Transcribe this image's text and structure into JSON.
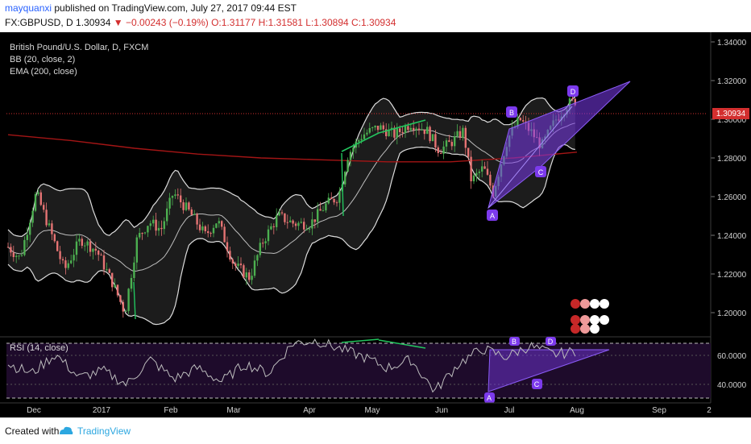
{
  "header": {
    "user": "mayquanxi",
    "published": "published on TradingView.com, July 27, 2017 09:44 EST",
    "symbol": "FX:GBPUSD, D",
    "last": "1.30934",
    "change": "−0.00243 (−0.19%)",
    "ohlc": "O:1.31177 H:1.31581 L:1.30894 C:1.30934"
  },
  "legend": {
    "line1": "British Pound/U.S. Dollar, D, FXCM",
    "line2": "BB (20, close, 2)",
    "line3": "EMA (200, close)",
    "rsi": "RSI (14, close)"
  },
  "footer": {
    "created": "Created with",
    "brand": "TradingView"
  },
  "colors": {
    "candle_up": "#4caf50",
    "candle_down": "#e57373",
    "ema": "#b71c1c",
    "bands": "#e0e0e0",
    "pattern": "#7c3aed",
    "divergence": "#22c55e",
    "rsi_fill": "#2a0f3a"
  },
  "chart_data": [
    {
      "type": "line",
      "title": "British Pound/U.S. Dollar, D, FXCM",
      "x_ticks": [
        "Dec",
        "2017",
        "Feb",
        "Mar",
        "Apr",
        "May",
        "Jun",
        "Jul",
        "Aug",
        "Sep",
        "2"
      ],
      "y_ticks": [
        "1.34000",
        "1.32000",
        "1.30000",
        "1.28000",
        "1.26000",
        "1.24000",
        "1.22000",
        "1.20000"
      ],
      "ylim": [
        1.19,
        1.345
      ],
      "last_price_label": "1.30934",
      "series": [
        {
          "name": "EMA (200, close)",
          "values": [
            1.292,
            1.289,
            1.285,
            1.282,
            1.28,
            1.279,
            1.278,
            1.278,
            1.28,
            1.283
          ]
        },
        {
          "name": "BB (20, close, 2)",
          "values": [
            1.255,
            1.245,
            1.24,
            1.233,
            1.24,
            1.245,
            1.253,
            1.285,
            1.292,
            1.286,
            1.27,
            1.287,
            1.3
          ]
        }
      ],
      "pattern": {
        "type": "rising wedge",
        "labels": [
          "A",
          "B",
          "C",
          "D"
        ]
      }
    },
    {
      "type": "line",
      "title": "RSI (14, close)",
      "y_ticks": [
        "60.0000",
        "40.0000"
      ],
      "ylim": [
        25,
        80
      ],
      "series": [
        {
          "name": "RSI (14, close)",
          "values": [
            55,
            48,
            62,
            45,
            50,
            40,
            58,
            44,
            52,
            42,
            55,
            48,
            70,
            72,
            66,
            60,
            52,
            58,
            35,
            55,
            66,
            60,
            68,
            62,
            64
          ]
        }
      ],
      "pattern": {
        "labels": [
          "A",
          "B",
          "C",
          "D"
        ]
      }
    }
  ]
}
